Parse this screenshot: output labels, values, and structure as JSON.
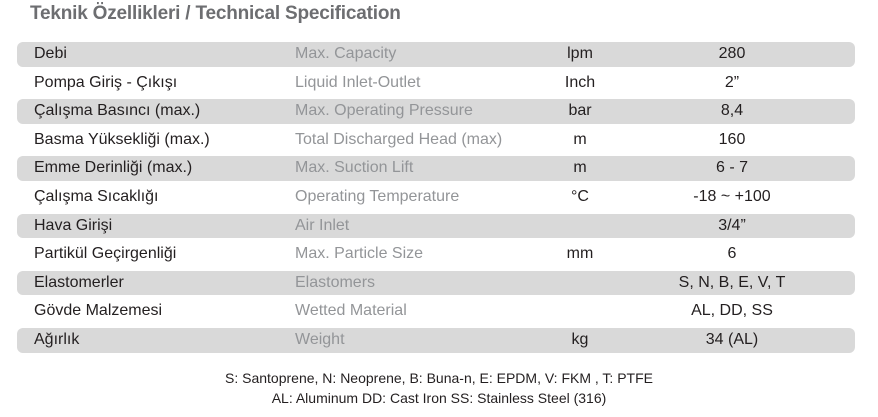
{
  "header": {
    "title": "Teknik Özellikleri / Technical Specification"
  },
  "table": {
    "rows": [
      [
        "Debi",
        "Max. Capacity",
        "lpm",
        "280"
      ],
      [
        "Pompa Giriş - Çıkışı",
        "Liquid Inlet-Outlet",
        "Inch",
        "2”"
      ],
      [
        "Çalışma Basıncı (max.)",
        "Max. Operating Pressure",
        "bar",
        "8,4"
      ],
      [
        "Basma Yüksekliği (max.)",
        "Total Discharged Head (max)",
        "m",
        "160"
      ],
      [
        "Emme Derinliği (max.)",
        "Max. Suction Lift",
        "m",
        "6 - 7"
      ],
      [
        "Çalışma Sıcaklığı",
        "Operating Temperature",
        "°C",
        "-18 ~ +100"
      ],
      [
        "Hava Girişi",
        "Air Inlet",
        null,
        "3/4”"
      ],
      [
        "Partikül Geçirgenliği",
        "Max. Particle Size",
        "mm",
        "6"
      ],
      [
        "Elastomerler",
        "Elastomers",
        null,
        "S, N, B, E, V, T"
      ],
      [
        "Gövde Malzemesi",
        "Wetted Material",
        null,
        "AL, DD, SS"
      ],
      [
        "Ağırlık",
        "Weight",
        "kg",
        "34 (AL)"
      ]
    ]
  },
  "footnotes": [
    "S: Santoprene, N: Neoprene, B: Buna-n, E: EPDM, V: FKM , T: PTFE",
    "AL: Aluminum  DD: Cast Iron  SS: Stainless Steel (316)"
  ]
}
